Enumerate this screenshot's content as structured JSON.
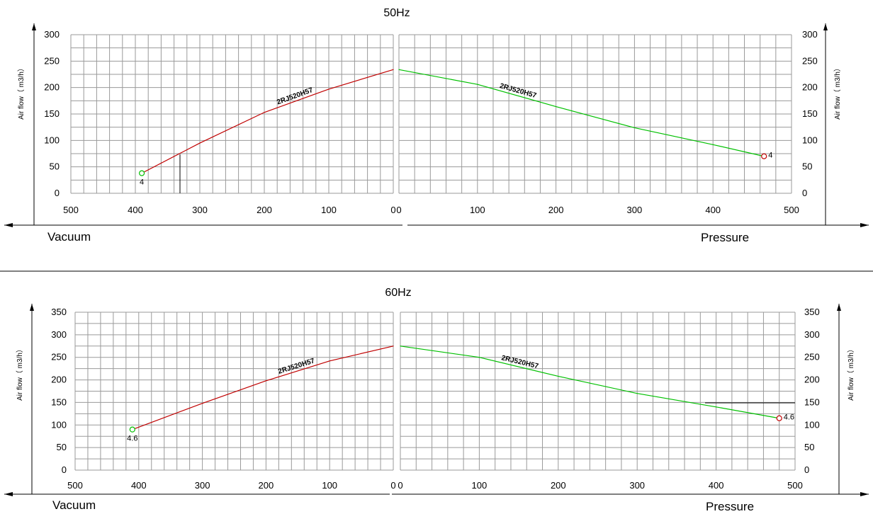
{
  "colors": {
    "vacuum_curve": "#c00000",
    "pressure_curve": "#00c000",
    "grid": "#9a9a9a",
    "axis": "#000000",
    "marker_vacuum": "#00c000",
    "marker_pressure": "#c00000"
  },
  "panels": [
    {
      "title": "50Hz",
      "ylabel": "Air flow（ m3/h）",
      "vacuum_label": "Vacuum",
      "pressure_label": "Pressure",
      "y_ticks": [
        "0",
        "50",
        "100",
        "150",
        "200",
        "250",
        "300"
      ],
      "vacuum_x_ticks": [
        "500",
        "400",
        "300",
        "200",
        "100",
        "0"
      ],
      "pressure_x_ticks": [
        "0",
        "100",
        "200",
        "300",
        "400",
        "500"
      ],
      "vacuum_end_label": "4",
      "pressure_end_label": "4"
    },
    {
      "title": "60Hz",
      "ylabel": "Air flow（ m3/h）",
      "vacuum_label": "Vacuum",
      "pressure_label": "Pressure",
      "y_ticks": [
        "0",
        "50",
        "100",
        "150",
        "200",
        "250",
        "300",
        "350"
      ],
      "vacuum_x_ticks": [
        "500",
        "400",
        "300",
        "200",
        "100",
        "0"
      ],
      "pressure_x_ticks": [
        "0",
        "100",
        "200",
        "300",
        "400",
        "500"
      ],
      "vacuum_end_label": "4.6",
      "pressure_end_label": "4.6"
    }
  ],
  "chart_data": [
    {
      "type": "line",
      "title": "50Hz",
      "xlabel": "Vacuum",
      "ylabel": "Air flow（ m3/h）",
      "xlim": [
        500,
        0
      ],
      "ylim": [
        0,
        300
      ],
      "grid": true,
      "series": [
        {
          "name": "2RJ520H57",
          "x": [
            390,
            300,
            200,
            100,
            0
          ],
          "y": [
            38,
            95,
            153,
            197,
            234
          ]
        }
      ]
    },
    {
      "type": "line",
      "title": "50Hz",
      "xlabel": "Pressure",
      "ylabel": "Air flow（ m3/h）",
      "xlim": [
        0,
        500
      ],
      "ylim": [
        0,
        300
      ],
      "grid": true,
      "series": [
        {
          "name": "2RJ520H57",
          "x": [
            0,
            100,
            200,
            300,
            400,
            465
          ],
          "y": [
            234,
            206,
            164,
            124,
            92,
            70
          ]
        }
      ]
    },
    {
      "type": "line",
      "title": "60Hz",
      "xlabel": "Vacuum",
      "ylabel": "Air flow（ m3/h）",
      "xlim": [
        500,
        0
      ],
      "ylim": [
        0,
        350
      ],
      "grid": true,
      "series": [
        {
          "name": "2RJ520H57",
          "x": [
            410,
            300,
            200,
            100,
            0
          ],
          "y": [
            90,
            148,
            198,
            242,
            275
          ]
        }
      ]
    },
    {
      "type": "line",
      "title": "60Hz",
      "xlabel": "Pressure",
      "ylabel": "Air flow（ m3/h）",
      "xlim": [
        0,
        500
      ],
      "ylim": [
        0,
        350
      ],
      "grid": true,
      "series": [
        {
          "name": "2RJ520H57",
          "x": [
            0,
            100,
            200,
            300,
            400,
            480
          ],
          "y": [
            275,
            250,
            208,
            170,
            140,
            115
          ]
        }
      ]
    }
  ]
}
